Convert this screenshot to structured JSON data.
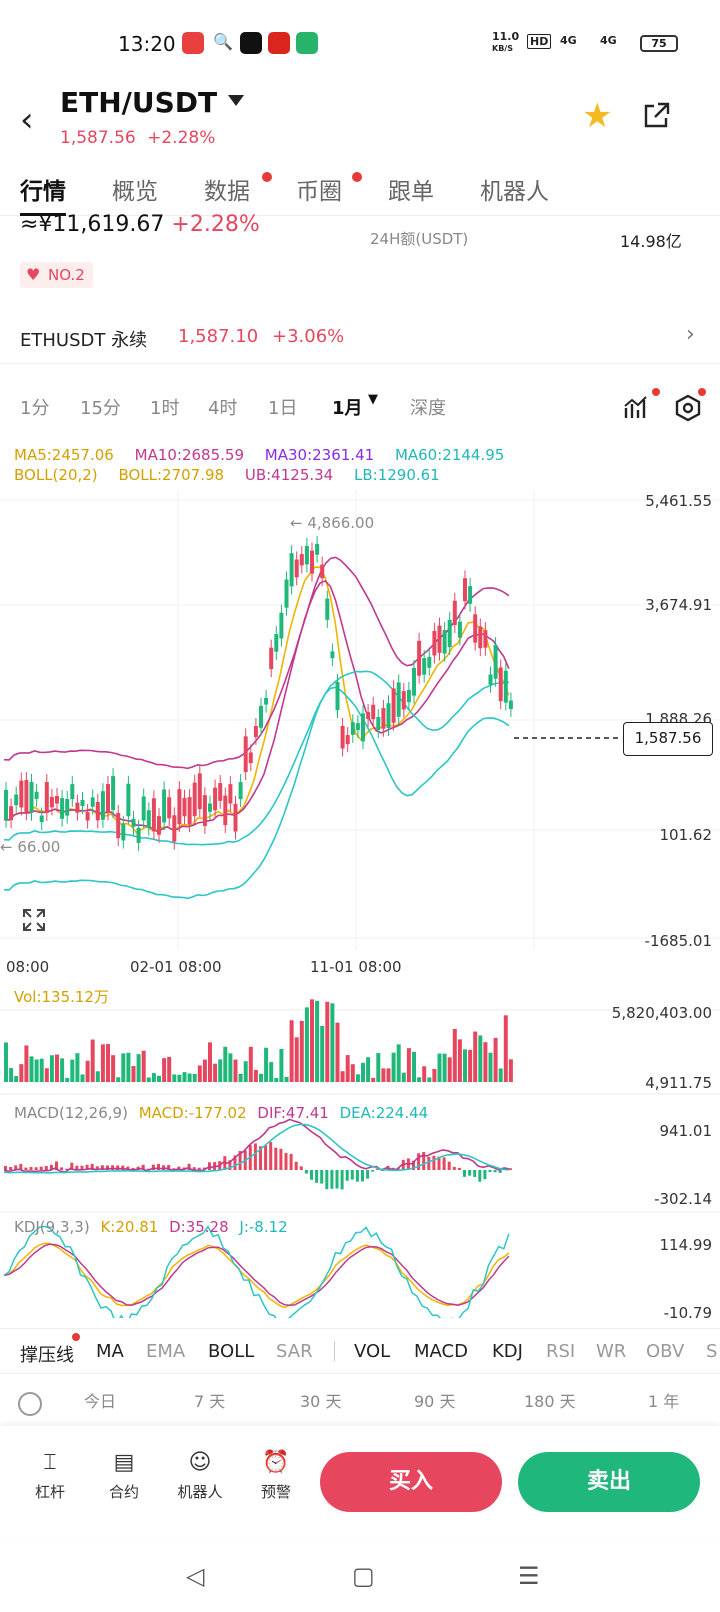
{
  "status": {
    "time": "13:20",
    "net_speed": "11.0",
    "net_unit": "KB/S",
    "hd": "HD",
    "sig1": "4G",
    "sig2": "4G",
    "battery": "75"
  },
  "header": {
    "pair": "ETH/USDT",
    "price": "1,587.56",
    "change": "+2.28%"
  },
  "tabs": [
    "行情",
    "概览",
    "数据",
    "币圈",
    "跟单",
    "机器人"
  ],
  "summary": {
    "cny_price": "≈¥11,619.67",
    "cny_change": "+2.28%",
    "vol_label": "24H额(USDT)",
    "vol_value": "14.98亿",
    "rank": "NO.2"
  },
  "perpetual": {
    "name": "ETHUSDT 永续",
    "price": "1,587.10",
    "change": "+3.06%"
  },
  "intervals": [
    "1分",
    "15分",
    "1时",
    "4时",
    "1日",
    "1月",
    "深度"
  ],
  "ma_line": {
    "ma5": "MA5:2457.06",
    "ma10": "MA10:2685.59",
    "ma30": "MA30:2361.41",
    "ma60": "MA60:2144.95"
  },
  "boll_line": {
    "boll_param": "BOLL(20,2)",
    "boll": "BOLL:2707.98",
    "ub": "UB:4125.34",
    "lb": "LB:1290.61"
  },
  "main_axis": [
    "5,461.55",
    "3,674.91",
    "1,888.26",
    "101.62",
    "-1685.01"
  ],
  "high_marker": "← 4,866.00",
  "low_marker": "← 66.00",
  "current_price": "1,587.56",
  "time_axis": [
    "08:00",
    "02-01 08:00",
    "11-01 08:00"
  ],
  "volume": {
    "label": "Vol:135.12万",
    "max": "5,820,403.00",
    "min": "4,911.75"
  },
  "macd": {
    "param": "MACD(12,26,9)",
    "macd": "MACD:-177.02",
    "dif": "DIF:47.41",
    "dea": "DEA:224.44",
    "max": "941.01",
    "min": "-302.14"
  },
  "kdj": {
    "param": "KDJ(9,3,3)",
    "k": "K:20.81",
    "d": "D:35.28",
    "j": "J:-8.12",
    "max": "114.99",
    "min": "-10.79"
  },
  "indicator_tabs": [
    "撑压线",
    "MA",
    "EMA",
    "BOLL",
    "SAR",
    "VOL",
    "MACD",
    "KDJ",
    "RSI",
    "WR",
    "OBV",
    "S"
  ],
  "periods": [
    "今日",
    "7 天",
    "30 天",
    "90 天",
    "180 天",
    "1 年"
  ],
  "actions": {
    "leverage": "杠杆",
    "contract": "合约",
    "robot": "机器人",
    "alert": "预警",
    "buy": "买入",
    "sell": "卖出"
  },
  "colors": {
    "up": "#e6475f",
    "down": "#1fb87a",
    "ma5": "#f0b400",
    "ma10": "#c0398f",
    "ma30": "#8a2be2",
    "ma60": "#2cc6c6"
  }
}
